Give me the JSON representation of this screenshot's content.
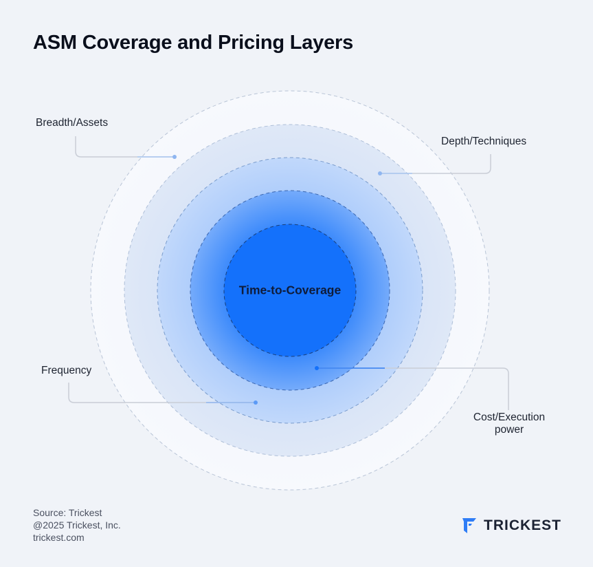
{
  "title": "ASM Coverage and Pricing Layers",
  "diagram": {
    "center_label": "Time-to-Coverage",
    "layers": [
      {
        "name": "Breadth/Assets"
      },
      {
        "name": "Depth/Techniques"
      },
      {
        "name": "Frequency"
      },
      {
        "name": "Cost/Execution power"
      }
    ],
    "labels": {
      "breadth": "Breadth/Assets",
      "depth": "Depth/Techniques",
      "frequency": "Frequency",
      "cost_line1": "Cost/Execution",
      "cost_line2": "power"
    },
    "colors": {
      "background": "#f0f3f8",
      "outer_ring": "#f4f7fc",
      "ring2": "#dde8f8",
      "ring3": "#b9d4fb",
      "ring4": "#6ea7fb",
      "core": "#1471fb",
      "connector": "#c9cdd6",
      "connector_accent": "#5b9af6"
    }
  },
  "footer": {
    "source": "Source: Trickest",
    "copyright": "@2025 Trickest, Inc.",
    "website": "trickest.com"
  },
  "brand": {
    "name": "TRICKEST",
    "logo_icon": "trickest-logo-icon",
    "logo_color": "#2f7df6"
  }
}
